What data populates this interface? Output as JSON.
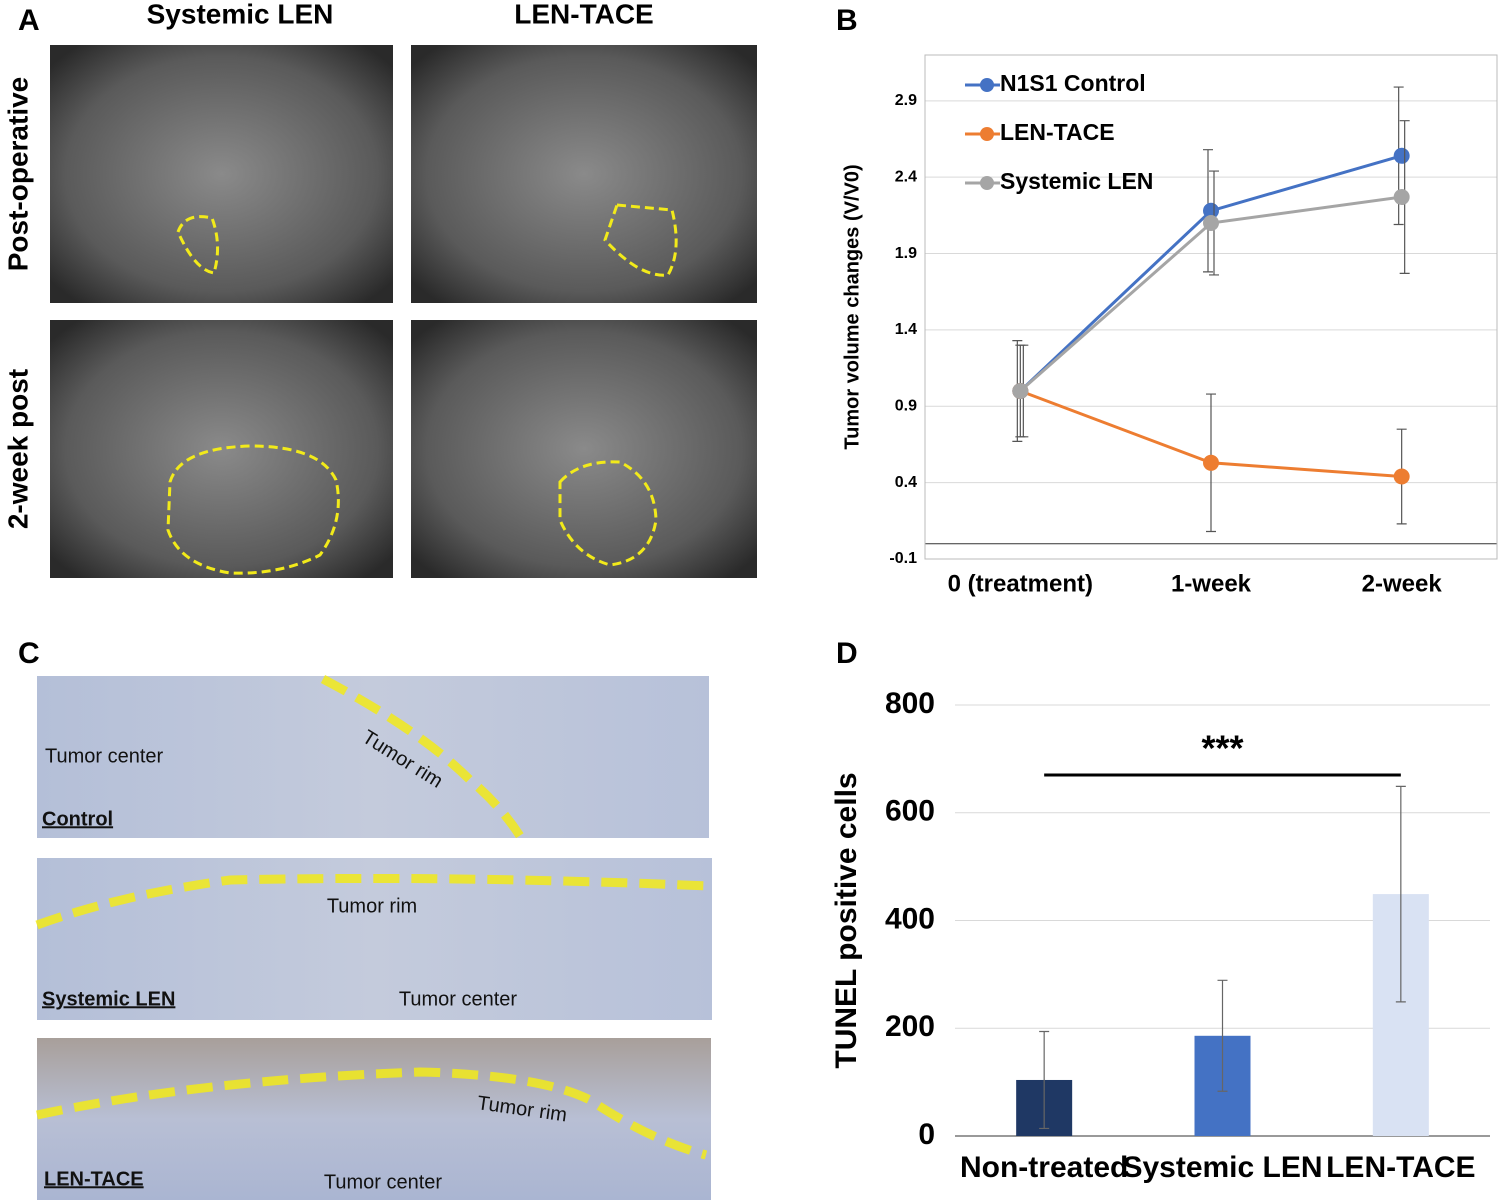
{
  "panels": {
    "A": {
      "label": "A",
      "columns": [
        "Systemic LEN",
        "LEN-TACE"
      ],
      "rows": [
        "Post-operative",
        "2-week post"
      ]
    },
    "B": {
      "label": "B"
    },
    "C": {
      "label": "C",
      "strips": [
        {
          "name": "Control",
          "labels": [
            "Tumor center",
            "Tumor rim"
          ]
        },
        {
          "name": "Systemic LEN",
          "labels": [
            "Tumor rim",
            "Tumor center"
          ]
        },
        {
          "name": "LEN-TACE",
          "labels": [
            "Tumor rim",
            "Tumor center"
          ]
        }
      ]
    },
    "D": {
      "label": "D"
    }
  },
  "chart_data": [
    {
      "type": "line",
      "y_label": "Tumor volume changes (V/V0)",
      "categories": [
        "0 (treatment)",
        "1-week",
        "2-week"
      ],
      "series": [
        {
          "name": "N1S1 Control",
          "color": "#4472c4",
          "values": [
            1.0,
            2.18,
            2.54
          ],
          "errors": [
            0.33,
            0.4,
            0.45
          ]
        },
        {
          "name": "LEN-TACE",
          "color": "#ed7d31",
          "values": [
            1.0,
            0.53,
            0.44
          ],
          "errors": [
            0.3,
            0.45,
            0.31
          ]
        },
        {
          "name": "Systemic LEN",
          "color": "#a5a5a5",
          "values": [
            1.0,
            2.1,
            2.27
          ],
          "errors": [
            0.3,
            0.34,
            0.5
          ]
        }
      ],
      "ylim": [
        -0.1,
        3.2
      ],
      "yticks": [
        -0.1,
        0.4,
        0.9,
        1.4,
        1.9,
        2.4,
        2.9
      ],
      "grid": true,
      "legend": "top-left"
    },
    {
      "type": "bar",
      "y_label": "TUNEL positive cells",
      "categories": [
        "Non-treated",
        "Systemic LEN",
        "LEN-TACE"
      ],
      "values": [
        104,
        186,
        449
      ],
      "errors": [
        90,
        103,
        200
      ],
      "colors": [
        "#1f3864",
        "#4472c4",
        "#d9e2f3"
      ],
      "ylim": [
        0,
        800
      ],
      "yticks": [
        0,
        200,
        400,
        600,
        800
      ],
      "grid": true,
      "annotation": "***"
    }
  ]
}
